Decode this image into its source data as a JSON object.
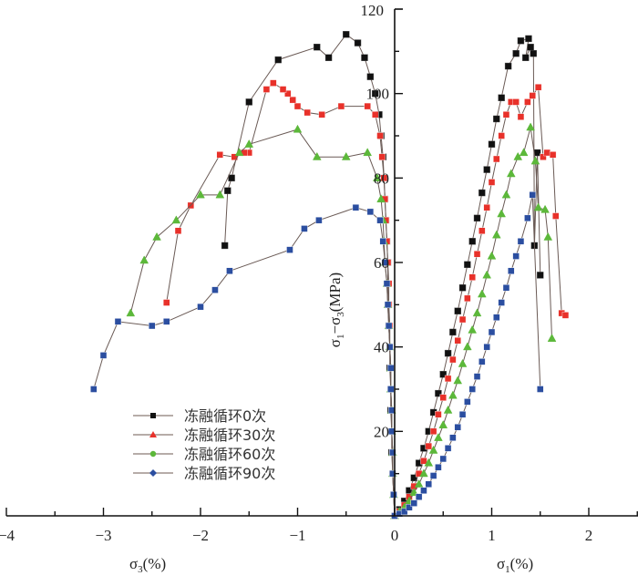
{
  "chart_data": {
    "type": "line",
    "title": "",
    "xlabel_left": "σ3(%)",
    "xlabel_right": "σ1(%)",
    "ylabel": "σ1−σ3(MPa)",
    "xlim": [
      -4,
      2.5
    ],
    "ylim": [
      0,
      120
    ],
    "x_ticks": [
      -4,
      -3,
      -2,
      -1,
      0,
      1,
      2
    ],
    "x_tick_labels": [
      "−4",
      "−3",
      "−2",
      "−1",
      "0",
      "1",
      "2"
    ],
    "y_ticks": [
      20,
      40,
      60,
      80,
      100,
      120
    ],
    "y_tick_labels": [
      "20",
      "40",
      "60",
      "80",
      "100",
      "120"
    ],
    "grid": false,
    "legend_position": "lower-left",
    "series": [
      {
        "name": "冻融循环0次",
        "color": "#111111",
        "marker": "square",
        "lateral": [
          [
            0,
            0
          ],
          [
            -0.01,
            5
          ],
          [
            -0.02,
            10
          ],
          [
            -0.03,
            15
          ],
          [
            -0.03,
            20
          ],
          [
            -0.04,
            25
          ],
          [
            -0.04,
            30
          ],
          [
            -0.05,
            35
          ],
          [
            -0.05,
            40
          ],
          [
            -0.06,
            45
          ],
          [
            -0.06,
            50
          ],
          [
            -0.07,
            55
          ],
          [
            -0.07,
            60
          ],
          [
            -0.08,
            65
          ],
          [
            -0.09,
            70
          ],
          [
            -0.1,
            75
          ],
          [
            -0.11,
            80
          ],
          [
            -0.12,
            85
          ],
          [
            -0.14,
            90
          ],
          [
            -0.16,
            95
          ],
          [
            -0.2,
            100
          ],
          [
            -0.25,
            104
          ],
          [
            -0.31,
            108.5
          ],
          [
            -0.38,
            112
          ],
          [
            -0.5,
            114
          ],
          [
            -0.68,
            108.5
          ],
          [
            -0.8,
            111
          ],
          [
            -1.2,
            108
          ],
          [
            -1.5,
            98
          ],
          [
            -1.68,
            80
          ],
          [
            -1.72,
            77
          ],
          [
            -1.75,
            64
          ]
        ],
        "axial": [
          [
            0,
            0
          ],
          [
            0.05,
            1.5
          ],
          [
            0.1,
            3.5
          ],
          [
            0.15,
            6
          ],
          [
            0.2,
            9
          ],
          [
            0.25,
            12.5
          ],
          [
            0.3,
            16
          ],
          [
            0.35,
            20
          ],
          [
            0.4,
            24.5
          ],
          [
            0.45,
            29
          ],
          [
            0.5,
            33.5
          ],
          [
            0.55,
            38.5
          ],
          [
            0.6,
            43.5
          ],
          [
            0.65,
            48.5
          ],
          [
            0.7,
            54
          ],
          [
            0.75,
            59.5
          ],
          [
            0.8,
            65
          ],
          [
            0.85,
            70.5
          ],
          [
            0.9,
            76.5
          ],
          [
            0.95,
            82
          ],
          [
            1.0,
            88
          ],
          [
            1.05,
            94
          ],
          [
            1.1,
            99
          ],
          [
            1.17,
            106.5
          ],
          [
            1.25,
            109.5
          ],
          [
            1.3,
            112.5
          ],
          [
            1.38,
            113
          ],
          [
            1.35,
            108.5
          ],
          [
            1.4,
            111
          ],
          [
            1.43,
            109.5
          ],
          [
            1.44,
            64
          ],
          [
            1.47,
            86
          ],
          [
            1.5,
            57
          ]
        ]
      },
      {
        "name": "冻融循环30次",
        "color": "#e8312a",
        "marker": "square",
        "lateral": [
          [
            0,
            0
          ],
          [
            -0.01,
            5
          ],
          [
            -0.02,
            10
          ],
          [
            -0.02,
            15
          ],
          [
            -0.03,
            20
          ],
          [
            -0.03,
            25
          ],
          [
            -0.04,
            30
          ],
          [
            -0.04,
            35
          ],
          [
            -0.05,
            40
          ],
          [
            -0.05,
            45
          ],
          [
            -0.06,
            50
          ],
          [
            -0.06,
            55
          ],
          [
            -0.07,
            60
          ],
          [
            -0.08,
            65
          ],
          [
            -0.09,
            70
          ],
          [
            -0.1,
            75
          ],
          [
            -0.11,
            80
          ],
          [
            -0.13,
            85
          ],
          [
            -0.15,
            90
          ],
          [
            -0.2,
            95
          ],
          [
            -0.28,
            97
          ],
          [
            -0.55,
            97
          ],
          [
            -0.75,
            95
          ],
          [
            -0.9,
            95.5
          ],
          [
            -1.0,
            97
          ],
          [
            -1.05,
            98.5
          ],
          [
            -1.1,
            100
          ],
          [
            -1.15,
            101
          ],
          [
            -1.25,
            102.5
          ],
          [
            -1.32,
            101
          ],
          [
            -1.5,
            86
          ],
          [
            -1.55,
            86
          ],
          [
            -1.65,
            85
          ],
          [
            -1.8,
            85.5
          ],
          [
            -2.1,
            73.5
          ],
          [
            -2.23,
            67.5
          ],
          [
            -2.35,
            50.5
          ]
        ],
        "axial": [
          [
            0,
            0
          ],
          [
            0.05,
            1
          ],
          [
            0.1,
            2.5
          ],
          [
            0.15,
            4.5
          ],
          [
            0.2,
            7
          ],
          [
            0.25,
            10
          ],
          [
            0.3,
            13
          ],
          [
            0.35,
            16.5
          ],
          [
            0.4,
            20
          ],
          [
            0.45,
            24
          ],
          [
            0.5,
            28
          ],
          [
            0.55,
            32.5
          ],
          [
            0.6,
            37
          ],
          [
            0.65,
            41.5
          ],
          [
            0.7,
            46.5
          ],
          [
            0.75,
            51.5
          ],
          [
            0.8,
            56.5
          ],
          [
            0.85,
            62
          ],
          [
            0.9,
            67.5
          ],
          [
            0.95,
            73
          ],
          [
            1.0,
            79
          ],
          [
            1.05,
            84.5
          ],
          [
            1.1,
            90
          ],
          [
            1.15,
            95
          ],
          [
            1.2,
            98
          ],
          [
            1.25,
            98
          ],
          [
            1.3,
            94.5
          ],
          [
            1.37,
            98
          ],
          [
            1.42,
            99.5
          ],
          [
            1.48,
            101.5
          ],
          [
            1.53,
            85
          ],
          [
            1.57,
            86
          ],
          [
            1.63,
            85.5
          ],
          [
            1.66,
            71
          ],
          [
            1.72,
            48
          ],
          [
            1.76,
            47.5
          ]
        ]
      },
      {
        "name": "冻融循环60次",
        "color": "#5cb83a",
        "marker": "triangle",
        "lateral": [
          [
            0,
            0
          ],
          [
            -0.01,
            5
          ],
          [
            -0.02,
            10
          ],
          [
            -0.02,
            15
          ],
          [
            -0.03,
            20
          ],
          [
            -0.03,
            25
          ],
          [
            -0.04,
            30
          ],
          [
            -0.04,
            35
          ],
          [
            -0.05,
            40
          ],
          [
            -0.06,
            45
          ],
          [
            -0.07,
            50
          ],
          [
            -0.08,
            55
          ],
          [
            -0.1,
            60
          ],
          [
            -0.11,
            65
          ],
          [
            -0.12,
            70
          ],
          [
            -0.14,
            75
          ],
          [
            -0.18,
            80
          ],
          [
            -0.28,
            86
          ],
          [
            -0.5,
            85
          ],
          [
            -0.8,
            85
          ],
          [
            -1.0,
            91.5
          ],
          [
            -1.5,
            88
          ],
          [
            -1.6,
            86
          ],
          [
            -1.8,
            76
          ],
          [
            -2.0,
            76
          ],
          [
            -2.25,
            70
          ],
          [
            -2.45,
            66
          ],
          [
            -2.58,
            60.5
          ],
          [
            -2.72,
            48
          ]
        ],
        "axial": [
          [
            0,
            0
          ],
          [
            0.05,
            1
          ],
          [
            0.1,
            2
          ],
          [
            0.15,
            3.5
          ],
          [
            0.2,
            5.5
          ],
          [
            0.25,
            7.5
          ],
          [
            0.3,
            10
          ],
          [
            0.35,
            12.5
          ],
          [
            0.4,
            15.5
          ],
          [
            0.45,
            18.5
          ],
          [
            0.5,
            21.5
          ],
          [
            0.55,
            25
          ],
          [
            0.6,
            28.5
          ],
          [
            0.65,
            32
          ],
          [
            0.7,
            36
          ],
          [
            0.75,
            40
          ],
          [
            0.8,
            44
          ],
          [
            0.85,
            48
          ],
          [
            0.9,
            52.5
          ],
          [
            0.95,
            57
          ],
          [
            1.0,
            61.5
          ],
          [
            1.05,
            66.5
          ],
          [
            1.1,
            71.5
          ],
          [
            1.15,
            76
          ],
          [
            1.2,
            81
          ],
          [
            1.27,
            85
          ],
          [
            1.33,
            86
          ],
          [
            1.4,
            92
          ],
          [
            1.45,
            84
          ],
          [
            1.48,
            73
          ],
          [
            1.55,
            72.5
          ],
          [
            1.58,
            66
          ],
          [
            1.62,
            42
          ]
        ]
      },
      {
        "name": "冻融循环90次",
        "color": "#2b4ea0",
        "marker": "square",
        "lateral": [
          [
            0,
            0
          ],
          [
            -0.01,
            5
          ],
          [
            -0.02,
            10
          ],
          [
            -0.02,
            15
          ],
          [
            -0.03,
            20
          ],
          [
            -0.03,
            25
          ],
          [
            -0.04,
            30
          ],
          [
            -0.04,
            35
          ],
          [
            -0.05,
            40
          ],
          [
            -0.06,
            45
          ],
          [
            -0.07,
            50
          ],
          [
            -0.08,
            55
          ],
          [
            -0.1,
            60
          ],
          [
            -0.12,
            65
          ],
          [
            -0.15,
            70
          ],
          [
            -0.25,
            72
          ],
          [
            -0.4,
            73
          ],
          [
            -0.78,
            70
          ],
          [
            -0.93,
            68
          ],
          [
            -1.08,
            63
          ],
          [
            -1.7,
            58
          ],
          [
            -1.85,
            53.5
          ],
          [
            -2.0,
            49.5
          ],
          [
            -2.35,
            46
          ],
          [
            -2.5,
            45
          ],
          [
            -2.85,
            46
          ],
          [
            -3.0,
            38
          ],
          [
            -3.1,
            30
          ]
        ],
        "axial": [
          [
            0,
            0
          ],
          [
            0.05,
            0.5
          ],
          [
            0.1,
            1
          ],
          [
            0.15,
            2
          ],
          [
            0.2,
            3
          ],
          [
            0.25,
            4.5
          ],
          [
            0.3,
            6
          ],
          [
            0.35,
            7.5
          ],
          [
            0.4,
            9.5
          ],
          [
            0.45,
            11.5
          ],
          [
            0.5,
            13.5
          ],
          [
            0.55,
            16
          ],
          [
            0.6,
            18.5
          ],
          [
            0.65,
            21
          ],
          [
            0.7,
            24
          ],
          [
            0.75,
            27
          ],
          [
            0.8,
            30
          ],
          [
            0.85,
            33
          ],
          [
            0.9,
            36.5
          ],
          [
            0.95,
            40
          ],
          [
            1.0,
            43.5
          ],
          [
            1.05,
            47
          ],
          [
            1.1,
            50.5
          ],
          [
            1.15,
            54
          ],
          [
            1.2,
            58
          ],
          [
            1.25,
            61.5
          ],
          [
            1.3,
            65
          ],
          [
            1.37,
            70.5
          ],
          [
            1.42,
            76
          ],
          [
            1.5,
            30
          ]
        ]
      }
    ]
  }
}
